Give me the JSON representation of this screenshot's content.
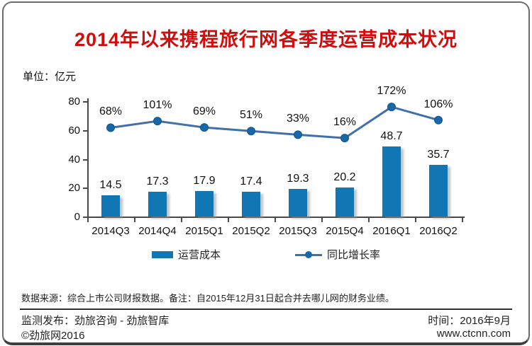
{
  "chart_data": {
    "type": "bar+line",
    "title": "2014年以来携程旅行网各季度运营成本状况",
    "unit_label": "单位：亿元",
    "categories": [
      "2014Q3",
      "2014Q4",
      "2015Q1",
      "2015Q2",
      "2015Q3",
      "2015Q4",
      "2016Q1",
      "2016Q2"
    ],
    "series": [
      {
        "name": "运营成本",
        "type": "bar",
        "values": [
          14.5,
          17.3,
          17.9,
          17.4,
          19.3,
          20.2,
          48.7,
          35.7
        ],
        "labels": [
          "14.5",
          "17.3",
          "17.9",
          "17.4",
          "19.3",
          "20.2",
          "48.7",
          "35.7"
        ],
        "color": "#1076b4"
      },
      {
        "name": "同比增长率",
        "type": "line",
        "values": [
          68,
          101,
          69,
          51,
          33,
          16,
          172,
          106
        ],
        "labels": [
          "68%",
          "101%",
          "69%",
          "51%",
          "33%",
          "16%",
          "172%",
          "106%"
        ],
        "line_color": "#4170a8",
        "marker_color": "#1668a8"
      }
    ],
    "y_ticks": [
      0,
      20,
      40,
      60,
      80
    ],
    "ylim": [
      0,
      80
    ],
    "grid": false,
    "legend_position": "bottom"
  },
  "colors": {
    "title": "#d40b0b",
    "axis": "#4a4a4a"
  },
  "footer": {
    "note": "数据来源：综合上市公司财报数据。备注：自2015年12月31日起合并去哪儿网的财务业绩。",
    "publisher": "监测发布：劲旅咨询 - 劲旅智库",
    "time": "时间：2016年9月",
    "copyright": "©劲旅网2016",
    "website": "www.ctcnn.com"
  }
}
